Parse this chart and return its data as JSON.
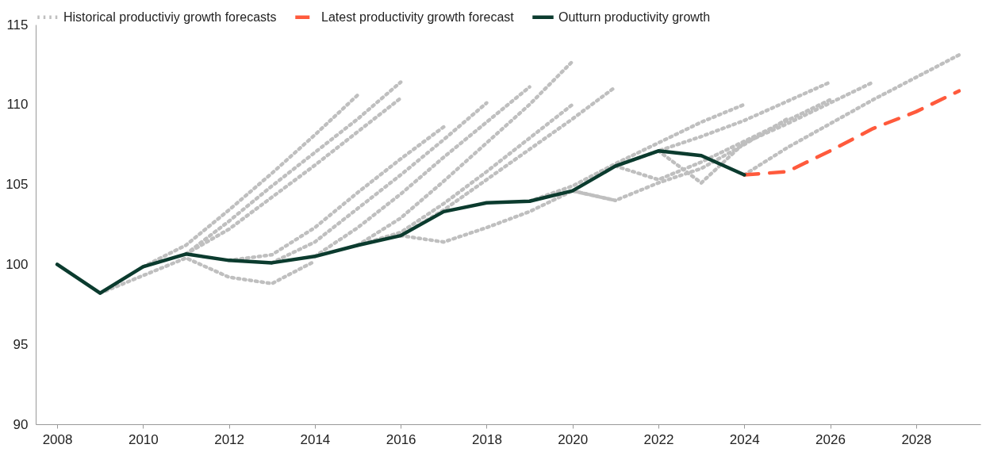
{
  "chart_data": {
    "type": "line",
    "legend": "top",
    "xlim": [
      2007.5,
      2029.5
    ],
    "xticks": [
      2008,
      2010,
      2012,
      2014,
      2016,
      2018,
      2020,
      2022,
      2024,
      2026,
      2028
    ],
    "ylim": [
      90,
      115
    ],
    "yticks": [
      90,
      95,
      100,
      105,
      110,
      115
    ],
    "series": [
      {
        "name": "Historical productiviy growth forecasts",
        "color": "#bfbfbf",
        "line_style": "dotted",
        "x": [
          2009,
          2010,
          2011,
          2012,
          2013,
          2014
        ],
        "values": [
          98.2,
          99.3,
          100.4,
          99.2,
          98.8,
          100.2
        ]
      },
      {
        "color": "#bfbfbf",
        "line_style": "dotted",
        "x": [
          2010,
          2011,
          2012,
          2013,
          2014,
          2015
        ],
        "values": [
          99.85,
          101.2,
          103.4,
          105.7,
          108.1,
          110.6
        ]
      },
      {
        "color": "#bfbfbf",
        "line_style": "dotted",
        "x": [
          2011,
          2012,
          2013,
          2014,
          2015,
          2016
        ],
        "values": [
          100.65,
          102.7,
          104.9,
          107.0,
          109.1,
          111.4
        ]
      },
      {
        "color": "#bfbfbf",
        "line_style": "dotted",
        "x": [
          2011,
          2012,
          2013,
          2014,
          2015,
          2016
        ],
        "values": [
          100.65,
          102.2,
          104.2,
          106.2,
          108.3,
          110.4
        ]
      },
      {
        "color": "#bfbfbf",
        "line_style": "dotted",
        "x": [
          2012,
          2013,
          2014,
          2015,
          2016,
          2017
        ],
        "values": [
          100.25,
          100.6,
          102.3,
          104.5,
          106.6,
          108.6
        ]
      },
      {
        "color": "#bfbfbf",
        "line_style": "dotted",
        "x": [
          2013,
          2014,
          2015,
          2016,
          2017,
          2018
        ],
        "values": [
          100.1,
          101.4,
          103.5,
          105.6,
          107.8,
          110.1
        ]
      },
      {
        "color": "#bfbfbf",
        "line_style": "dotted",
        "x": [
          2014,
          2015,
          2016,
          2017,
          2018,
          2019
        ],
        "values": [
          100.5,
          102.3,
          104.4,
          106.7,
          108.9,
          111.1
        ]
      },
      {
        "color": "#bfbfbf",
        "line_style": "dotted",
        "x": [
          2015,
          2016,
          2017,
          2018,
          2019,
          2020
        ],
        "values": [
          101.2,
          102.9,
          105.2,
          107.6,
          110.0,
          112.7
        ]
      },
      {
        "color": "#bfbfbf",
        "line_style": "dotted",
        "x": [
          2015,
          2016,
          2017,
          2018,
          2019,
          2020
        ],
        "values": [
          101.2,
          102.0,
          103.8,
          105.8,
          107.9,
          110.0
        ]
      },
      {
        "color": "#bfbfbf",
        "line_style": "dotted",
        "x": [
          2016,
          2017,
          2018,
          2019,
          2020,
          2021
        ],
        "values": [
          101.8,
          103.4,
          105.3,
          107.2,
          109.1,
          111.1
        ]
      },
      {
        "color": "#bfbfbf",
        "line_style": "dotted",
        "x": [
          2016,
          2017,
          2018,
          2019,
          2020,
          2021
        ],
        "values": [
          101.8,
          101.4,
          102.3,
          103.3,
          104.6,
          104.0
        ]
      },
      {
        "color": "#bfbfbf",
        "line_style": "dotted",
        "x": [
          2019,
          2020,
          2021,
          2022,
          2023,
          2024
        ],
        "values": [
          103.95,
          104.9,
          106.3,
          107.6,
          108.9,
          110.0
        ]
      },
      {
        "color": "#bfbfbf",
        "line_style": "dotted",
        "x": [
          2020,
          2021,
          2022,
          2023,
          2024,
          2025
        ],
        "values": [
          104.6,
          104.0,
          105.1,
          106.0,
          107.5,
          109.1
        ]
      },
      {
        "color": "#bfbfbf",
        "line_style": "dotted",
        "x": [
          2021,
          2022,
          2023,
          2024,
          2025,
          2026
        ],
        "values": [
          106.15,
          107.1,
          108.0,
          109.0,
          110.2,
          111.4
        ]
      },
      {
        "color": "#bfbfbf",
        "line_style": "dotted",
        "x": [
          2021,
          2022,
          2023,
          2024,
          2025,
          2026
        ],
        "values": [
          106.15,
          105.3,
          106.4,
          107.7,
          109.0,
          110.3
        ]
      },
      {
        "color": "#bfbfbf",
        "line_style": "dotted",
        "x": [
          2022,
          2023,
          2024,
          2025,
          2026,
          2027
        ],
        "values": [
          107.1,
          105.1,
          107.6,
          108.8,
          110.1,
          111.4
        ]
      },
      {
        "color": "#bfbfbf",
        "line_style": "dotted",
        "x": [
          2024,
          2025,
          2026,
          2027,
          2028,
          2029
        ],
        "values": [
          105.6,
          107.3,
          108.8,
          110.3,
          111.7,
          113.1
        ]
      },
      {
        "name": "Latest productivity growth forecast",
        "color": "#ff5a3c",
        "line_style": "dashed",
        "x": [
          2024,
          2025,
          2026,
          2027,
          2028,
          2029
        ],
        "values": [
          105.6,
          105.8,
          107.1,
          108.5,
          109.55,
          110.85
        ]
      },
      {
        "name": "Outturn productivity growth",
        "color": "#0b3b2e",
        "line_style": "solid",
        "x": [
          2008,
          2009,
          2010,
          2011,
          2012,
          2013,
          2014,
          2015,
          2016,
          2017,
          2018,
          2019,
          2020,
          2021,
          2022,
          2023,
          2024
        ],
        "values": [
          100,
          98.2,
          99.85,
          100.65,
          100.25,
          100.1,
          100.5,
          101.2,
          101.8,
          103.3,
          103.85,
          103.95,
          104.6,
          106.15,
          107.1,
          106.8,
          105.6
        ]
      }
    ]
  }
}
